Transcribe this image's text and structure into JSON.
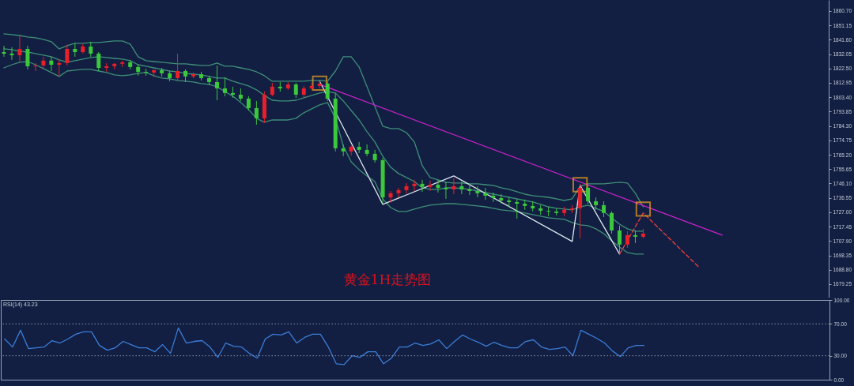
{
  "chart_data": [
    {
      "type": "candlestick",
      "title": "黄金1H走势图",
      "categories": [
        null,
        null,
        null,
        null,
        null,
        null,
        null,
        null,
        null,
        null,
        null,
        null,
        null,
        null,
        null,
        null,
        null,
        null,
        null,
        null,
        null,
        null,
        null,
        null,
        null,
        null,
        null,
        null,
        null,
        null,
        null,
        null,
        null,
        null,
        null,
        null,
        null,
        null,
        null,
        null,
        null,
        null,
        null,
        null,
        null,
        null,
        null,
        null,
        null,
        null,
        null,
        null,
        null,
        null,
        null,
        null,
        null,
        null,
        null,
        null,
        null,
        null,
        null,
        null,
        null,
        null,
        null,
        null,
        null,
        null,
        null,
        null,
        null,
        null,
        null,
        null,
        null,
        null,
        null,
        null,
        null,
        null,
        null,
        null,
        null,
        null,
        null,
        null,
        null,
        null,
        null,
        null,
        null,
        null,
        null,
        null,
        null,
        null,
        null,
        null,
        null,
        null,
        null,
        null,
        null
      ],
      "ohlc": [
        [
          1833.4,
          1837.6,
          1830.3,
          1832.4
        ],
        [
          1832.4,
          1836.6,
          1828.2,
          1831.3
        ],
        [
          1831.3,
          1844.4,
          1827.1,
          1835.5
        ],
        [
          1835.5,
          1837.6,
          1821.9,
          1824.0
        ],
        [
          1824.0,
          1826.1,
          1820.8,
          1824.5
        ],
        [
          1824.5,
          1830.3,
          1821.9,
          1827.7
        ],
        [
          1827.7,
          1830.3,
          1820.8,
          1825.0
        ],
        [
          1825.0,
          1828.7,
          1817.2,
          1826.1
        ],
        [
          1826.1,
          1838.2,
          1824.5,
          1835.5
        ],
        [
          1835.5,
          1839.2,
          1830.3,
          1833.4
        ],
        [
          1833.4,
          1838.7,
          1832.4,
          1837.1
        ],
        [
          1837.1,
          1840.3,
          1830.3,
          1832.4
        ],
        [
          1832.4,
          1833.4,
          1820.8,
          1822.9
        ],
        [
          1822.9,
          1826.1,
          1820.3,
          1824.0
        ],
        [
          1824.0,
          1826.1,
          1821.9,
          1825.6
        ],
        [
          1825.6,
          1827.7,
          1823.5,
          1826.6
        ],
        [
          1826.6,
          1828.2,
          1821.9,
          1823.5
        ],
        [
          1823.5,
          1825.0,
          1817.7,
          1820.3
        ],
        [
          1820.3,
          1822.4,
          1817.7,
          1819.8
        ],
        [
          1819.8,
          1821.9,
          1816.7,
          1821.4
        ],
        [
          1821.4,
          1822.9,
          1817.2,
          1819.3
        ],
        [
          1819.3,
          1820.8,
          1814.0,
          1816.1
        ],
        [
          1816.1,
          1832.4,
          1814.0,
          1820.8
        ],
        [
          1820.8,
          1821.9,
          1813.5,
          1817.2
        ],
        [
          1817.2,
          1819.8,
          1816.1,
          1818.7
        ],
        [
          1818.7,
          1820.3,
          1814.6,
          1816.1
        ],
        [
          1816.1,
          1817.7,
          1811.4,
          1813.5
        ],
        [
          1813.5,
          1824.5,
          1801.4,
          1809.3
        ],
        [
          1809.3,
          1816.7,
          1804.1,
          1806.2
        ],
        [
          1806.2,
          1810.4,
          1803.0,
          1805.1
        ],
        [
          1805.1,
          1809.3,
          1800.9,
          1802.5
        ],
        [
          1802.5,
          1804.1,
          1794.6,
          1796.2
        ],
        [
          1796.2,
          1800.9,
          1785.2,
          1789.4
        ],
        [
          1789.4,
          1807.2,
          1786.2,
          1805.1
        ],
        [
          1805.1,
          1813.0,
          1804.1,
          1810.4
        ],
        [
          1810.4,
          1813.5,
          1807.2,
          1809.3
        ],
        [
          1809.3,
          1813.5,
          1808.3,
          1811.9
        ],
        [
          1811.9,
          1813.0,
          1803.0,
          1805.1
        ],
        [
          1805.1,
          1810.9,
          1803.5,
          1809.3
        ],
        [
          1809.3,
          1813.0,
          1808.3,
          1810.9
        ],
        [
          1810.9,
          1814.0,
          1809.3,
          1812.5
        ],
        [
          1812.5,
          1813.5,
          1800.9,
          1802.5
        ],
        [
          1802.5,
          1806.2,
          1767.4,
          1769.5
        ],
        [
          1769.5,
          1772.1,
          1764.2,
          1767.4
        ],
        [
          1767.4,
          1771.6,
          1764.7,
          1770.5
        ],
        [
          1770.5,
          1773.7,
          1766.3,
          1768.4
        ],
        [
          1768.4,
          1772.1,
          1764.2,
          1765.8
        ],
        [
          1765.8,
          1768.4,
          1760.0,
          1761.6
        ],
        [
          1761.6,
          1763.2,
          1732.7,
          1736.9
        ],
        [
          1736.9,
          1741.1,
          1733.3,
          1739.6
        ],
        [
          1739.6,
          1743.2,
          1736.9,
          1741.7
        ],
        [
          1741.7,
          1746.4,
          1739.6,
          1744.3
        ],
        [
          1744.3,
          1748.5,
          1741.1,
          1745.9
        ],
        [
          1745.9,
          1748.5,
          1740.6,
          1743.8
        ],
        [
          1743.8,
          1748.0,
          1741.1,
          1745.3
        ],
        [
          1745.3,
          1748.5,
          1740.1,
          1743.2
        ],
        [
          1743.2,
          1747.4,
          1735.9,
          1742.2
        ],
        [
          1742.2,
          1749.5,
          1739.0,
          1744.3
        ],
        [
          1744.3,
          1747.4,
          1739.0,
          1742.2
        ],
        [
          1742.2,
          1745.9,
          1738.5,
          1741.1
        ],
        [
          1741.1,
          1744.3,
          1736.9,
          1739.6
        ],
        [
          1739.6,
          1743.2,
          1735.4,
          1738.0
        ],
        [
          1738.0,
          1740.1,
          1733.8,
          1736.4
        ],
        [
          1736.4,
          1739.0,
          1732.7,
          1734.8
        ],
        [
          1734.8,
          1736.9,
          1730.6,
          1733.8
        ],
        [
          1733.8,
          1735.9,
          1722.8,
          1732.7
        ],
        [
          1732.7,
          1735.4,
          1728.6,
          1731.2
        ],
        [
          1731.2,
          1734.3,
          1727.5,
          1729.6
        ],
        [
          1729.6,
          1731.7,
          1725.4,
          1728.0
        ],
        [
          1728.0,
          1730.6,
          1724.4,
          1727.5
        ],
        [
          1727.5,
          1729.6,
          1724.9,
          1726.5
        ],
        [
          1726.5,
          1730.6,
          1724.4,
          1728.6
        ],
        [
          1728.6,
          1731.7,
          1726.5,
          1729.6
        ],
        [
          1729.6,
          1745.9,
          1709.7,
          1743.2
        ],
        [
          1743.2,
          1744.8,
          1732.7,
          1734.3
        ],
        [
          1734.3,
          1736.9,
          1728.6,
          1731.7
        ],
        [
          1731.7,
          1734.3,
          1723.8,
          1726.5
        ],
        [
          1726.5,
          1727.5,
          1712.8,
          1714.9
        ],
        [
          1714.9,
          1718.1,
          1700.2,
          1705.5
        ],
        [
          1705.5,
          1714.4,
          1703.4,
          1711.8
        ],
        [
          1711.8,
          1714.9,
          1706.5,
          1710.7
        ],
        [
          1710.7,
          1716.0,
          1709.7,
          1712.8
        ],
        null,
        null,
        null,
        null,
        null,
        null,
        null,
        null,
        null,
        null,
        null,
        null,
        null,
        null,
        null,
        null,
        null,
        null,
        null,
        null,
        null,
        null,
        null
      ],
      "colors": [
        "#3cc83c",
        "#3cc83c",
        "#e8202a",
        "#3cc83c",
        "#e8202a",
        "#e8202a",
        "#3cc83c",
        "#e8202a",
        "#e8202a",
        "#3cc83c",
        "#e8202a",
        "#3cc83c",
        "#3cc83c",
        "#e8202a",
        "#e8202a",
        "#e8202a",
        "#3cc83c",
        "#3cc83c",
        "#3cc83c",
        "#e8202a",
        "#3cc83c",
        "#3cc83c",
        "#e8202a",
        "#3cc83c",
        "#e8202a",
        "#3cc83c",
        "#3cc83c",
        "#3cc83c",
        "#3cc83c",
        "#3cc83c",
        "#3cc83c",
        "#3cc83c",
        "#3cc83c",
        "#e8202a",
        "#e8202a",
        "#3cc83c",
        "#e8202a",
        "#3cc83c",
        "#e8202a",
        "#e8202a",
        "#e8202a",
        "#3cc83c",
        "#3cc83c",
        "#3cc83c",
        "#e8202a",
        "#3cc83c",
        "#3cc83c",
        "#3cc83c",
        "#3cc83c",
        "#e8202a",
        "#e8202a",
        "#e8202a",
        "#e8202a",
        "#3cc83c",
        "#e8202a",
        "#3cc83c",
        "#3cc83c",
        "#e8202a",
        "#3cc83c",
        "#3cc83c",
        "#3cc83c",
        "#3cc83c",
        "#3cc83c",
        "#3cc83c",
        "#3cc83c",
        "#3cc83c",
        "#3cc83c",
        "#3cc83c",
        "#3cc83c",
        "#3cc83c",
        "#3cc83c",
        "#e8202a",
        "#e8202a",
        "#e8202a",
        "#3cc83c",
        "#3cc83c",
        "#3cc83c",
        "#3cc83c",
        "#3cc83c",
        "#e8202a",
        "#3cc83c",
        "#e8202a",
        null,
        null,
        null,
        null,
        null,
        null,
        null,
        null,
        null,
        null,
        null,
        null,
        null,
        null,
        null,
        null,
        null,
        null,
        null,
        null,
        null,
        null,
        null
      ],
      "series": [
        {
          "type": "line",
          "color": "#3f8f78",
          "values": [
            1845.5,
            1845.0,
            1844.4,
            1843.4,
            1842.9,
            1841.8,
            1840.3,
            1835.5,
            1837.6,
            1839.2,
            1839.2,
            1839.7,
            1839.7,
            1840.3,
            1840.8,
            1840.8,
            1838.7,
            1830.3,
            1827.7,
            1827.1,
            1826.6,
            1826.1,
            1825.6,
            1825.6,
            1825.0,
            1824.5,
            1824.5,
            1826.1,
            1824.0,
            1824.0,
            1822.9,
            1821.9,
            1820.3,
            1817.7,
            1814.0,
            1814.0,
            1814.0,
            1814.0,
            1814.0,
            1814.6,
            1814.6,
            1814.0,
            1820.8,
            1830.3,
            1830.3,
            1823.5,
            1810.4,
            1797.2,
            1784.1,
            1782.6,
            1782.6,
            1779.9,
            1773.7,
            1757.9,
            1750.1,
            1748.5,
            1746.9,
            1746.4,
            1746.4,
            1745.9,
            1745.9,
            1745.3,
            1744.8,
            1743.2,
            1742.2,
            1740.6,
            1739.0,
            1738.0,
            1737.5,
            1736.9,
            1735.9,
            1734.8,
            1735.9,
            1744.3,
            1745.9,
            1745.9,
            1745.9,
            1746.4,
            1746.9,
            1746.4,
            1739.6,
            1730.6,
            null,
            null,
            null,
            null,
            null,
            null,
            null,
            null,
            null,
            null,
            null,
            null,
            null,
            null,
            null,
            null,
            null,
            null,
            null,
            null,
            null,
            null,
            null
          ]
        },
        {
          "type": "line",
          "color": "#3f8f78",
          "values": [
            1835.5,
            1835.0,
            1834.0,
            1833.4,
            1832.4,
            1831.3,
            1830.3,
            1828.2,
            1826.6,
            1827.7,
            1828.7,
            1829.8,
            1830.3,
            1829.8,
            1829.2,
            1828.7,
            1827.7,
            1825.0,
            1824.0,
            1822.9,
            1821.9,
            1820.8,
            1820.3,
            1819.3,
            1818.7,
            1818.2,
            1817.2,
            1816.1,
            1816.1,
            1814.0,
            1812.5,
            1810.9,
            1808.3,
            1804.6,
            1801.4,
            1800.9,
            1800.9,
            1801.4,
            1803.0,
            1804.6,
            1806.2,
            1807.2,
            1806.2,
            1800.9,
            1794.6,
            1788.3,
            1780.5,
            1773.7,
            1764.2,
            1756.9,
            1752.7,
            1750.1,
            1747.4,
            1743.2,
            1742.2,
            1742.2,
            1743.2,
            1743.2,
            1742.7,
            1742.2,
            1741.1,
            1740.1,
            1739.0,
            1738.0,
            1736.9,
            1735.9,
            1734.8,
            1733.8,
            1732.2,
            1730.6,
            1729.6,
            1729.1,
            1728.6,
            1730.6,
            1731.7,
            1729.6,
            1727.5,
            1723.3,
            1719.1,
            1716.0,
            1714.4,
            1714.4,
            null,
            null,
            null,
            null,
            null,
            null,
            null,
            null,
            null,
            null,
            null,
            null,
            null,
            null,
            null,
            null,
            null,
            null,
            null,
            null,
            null,
            null,
            null
          ]
        },
        {
          "type": "line",
          "color": "#3f8f78",
          "values": [
            1822.9,
            1825.0,
            1826.6,
            1827.1,
            1825.0,
            1822.4,
            1819.8,
            1817.2,
            1820.8,
            1821.4,
            1821.9,
            1821.9,
            1820.8,
            1819.8,
            1818.2,
            1817.7,
            1818.2,
            1819.3,
            1819.8,
            1817.7,
            1816.1,
            1815.6,
            1814.6,
            1814.0,
            1813.5,
            1812.5,
            1811.9,
            1810.4,
            1807.2,
            1804.1,
            1799.9,
            1795.2,
            1789.4,
            1786.8,
            1788.3,
            1788.3,
            1788.3,
            1789.4,
            1793.1,
            1795.7,
            1798.3,
            1799.9,
            1789.4,
            1771.0,
            1760.5,
            1755.3,
            1751.1,
            1747.4,
            1735.9,
            1730.1,
            1727.5,
            1727.5,
            1729.1,
            1730.6,
            1731.7,
            1732.2,
            1732.7,
            1732.7,
            1732.2,
            1731.7,
            1731.2,
            1730.6,
            1729.6,
            1728.6,
            1728.0,
            1727.5,
            1726.5,
            1725.4,
            1724.4,
            1723.3,
            1722.8,
            1722.3,
            1720.2,
            1718.6,
            1718.1,
            1716.0,
            1712.8,
            1708.1,
            1703.9,
            1700.2,
            1699.2,
            1699.2,
            null,
            null,
            null,
            null,
            null,
            null,
            null,
            null,
            null,
            null,
            null,
            null,
            null,
            null,
            null,
            null,
            null,
            null,
            null,
            null,
            null,
            null,
            null
          ]
        },
        {
          "type": "line",
          "color": "#cc22cc",
          "values": [
            null,
            null,
            null,
            null,
            null,
            null,
            null,
            null,
            null,
            null,
            null,
            null,
            null,
            null,
            null,
            null,
            null,
            null,
            null,
            null,
            null,
            null,
            null,
            null,
            null,
            null,
            null,
            null,
            null,
            null,
            null,
            null,
            null,
            null,
            null,
            null,
            null,
            null,
            null,
            null,
            1811.9,
            null,
            null,
            null,
            null,
            null,
            null,
            null,
            null,
            null,
            null,
            null,
            null,
            null,
            null,
            null,
            null,
            null,
            null,
            null,
            null,
            null,
            null,
            null,
            null,
            null,
            null,
            null,
            null,
            null,
            null,
            null,
            null,
            null,
            null,
            null,
            null,
            null,
            null,
            null,
            null,
            null,
            null,
            null,
            null,
            null,
            null,
            null,
            null,
            null,
            null,
            1711.8,
            null,
            null,
            null,
            null,
            null,
            null,
            null,
            null,
            null,
            null,
            null,
            null,
            null
          ]
        },
        {
          "type": "line",
          "color": "#dce6ee",
          "values": [
            null,
            null,
            null,
            null,
            null,
            null,
            null,
            null,
            null,
            null,
            null,
            null,
            null,
            null,
            null,
            null,
            null,
            null,
            null,
            null,
            null,
            null,
            null,
            null,
            null,
            null,
            null,
            null,
            null,
            null,
            null,
            null,
            null,
            null,
            null,
            null,
            null,
            null,
            null,
            null,
            1814.0,
            null,
            null,
            null,
            null,
            null,
            null,
            null,
            1732.2,
            null,
            null,
            null,
            null,
            null,
            null,
            null,
            null,
            1751.1,
            null,
            null,
            null,
            null,
            null,
            null,
            null,
            null,
            null,
            null,
            null,
            null,
            null,
            null,
            1707.6,
            1744.8,
            null,
            null,
            null,
            null,
            1699.2,
            null,
            null,
            null,
            null,
            null,
            null,
            null,
            null,
            null,
            null,
            null,
            null,
            null,
            null,
            null,
            null,
            null,
            null,
            null,
            null,
            null,
            null,
            null,
            null,
            null,
            null
          ]
        },
        {
          "type": "line",
          "color": "#f04040",
          "line_style": "dashed",
          "values": [
            null,
            null,
            null,
            null,
            null,
            null,
            null,
            null,
            null,
            null,
            null,
            null,
            null,
            null,
            null,
            null,
            null,
            null,
            null,
            null,
            null,
            null,
            null,
            null,
            null,
            null,
            null,
            null,
            null,
            null,
            null,
            null,
            null,
            null,
            null,
            null,
            null,
            null,
            null,
            null,
            null,
            null,
            null,
            null,
            null,
            null,
            null,
            null,
            null,
            null,
            null,
            null,
            null,
            null,
            null,
            null,
            null,
            null,
            null,
            null,
            null,
            null,
            null,
            null,
            null,
            null,
            null,
            null,
            null,
            null,
            null,
            null,
            null,
            null,
            null,
            null,
            null,
            null,
            1699.2,
            null,
            null,
            1726.5,
            null,
            null,
            null,
            null,
            null,
            null,
            1690.8,
            null,
            null,
            null,
            null,
            null,
            null,
            null,
            null,
            null,
            null,
            null,
            null,
            null,
            null,
            null,
            null
          ]
        },
        {
          "type": "scatter",
          "color": "#f0a020",
          "marker": "square",
          "values": [
            null,
            null,
            null,
            null,
            null,
            null,
            null,
            null,
            null,
            null,
            null,
            null,
            null,
            null,
            null,
            null,
            null,
            null,
            null,
            null,
            null,
            null,
            null,
            null,
            null,
            null,
            null,
            null,
            null,
            null,
            null,
            null,
            null,
            null,
            null,
            null,
            null,
            null,
            null,
            null,
            1812.7,
            null,
            null,
            null,
            null,
            null,
            null,
            null,
            null,
            null,
            null,
            null,
            null,
            null,
            null,
            null,
            null,
            null,
            null,
            null,
            null,
            null,
            null,
            null,
            null,
            null,
            null,
            null,
            null,
            null,
            null,
            null,
            null,
            1745.3,
            null,
            null,
            null,
            null,
            null,
            null,
            null,
            1729.1,
            null,
            null,
            null,
            null,
            null,
            null,
            null,
            null,
            null,
            null,
            null,
            null,
            null,
            null,
            null,
            null,
            null,
            null,
            null,
            null,
            null,
            null,
            null
          ]
        }
      ],
      "ylim": [
        1670.3,
        1868.0
      ],
      "yticks": [
        {
          "value": 1860.7,
          "label": "1860.70"
        },
        {
          "value": 1851.15,
          "label": "1851.15"
        },
        {
          "value": 1841.6,
          "label": "1841.60"
        },
        {
          "value": 1832.05,
          "label": "1832.05"
        },
        {
          "value": 1822.5,
          "label": "1822.50"
        },
        {
          "value": 1812.95,
          "label": "1812.95"
        },
        {
          "value": 1803.4,
          "label": "1803.40"
        },
        {
          "value": 1793.85,
          "label": "1793.85"
        },
        {
          "value": 1784.3,
          "label": "1784.30"
        },
        {
          "value": 1774.75,
          "label": "1774.75"
        },
        {
          "value": 1765.2,
          "label": "1765.20"
        },
        {
          "value": 1755.65,
          "label": "1755.65"
        },
        {
          "value": 1746.1,
          "label": "1746.10"
        },
        {
          "value": 1736.55,
          "label": "1736.55"
        },
        {
          "value": 1727,
          "label": "1727.00"
        },
        {
          "value": 1717.45,
          "label": "1717.45"
        },
        {
          "value": 1707.9,
          "label": "1707.90"
        },
        {
          "value": 1698.35,
          "label": "1698.35"
        },
        {
          "value": 1688.8,
          "label": "1688.80"
        },
        {
          "value": 1679.25,
          "label": "1679.25"
        }
      ],
      "tick_labels": "y"
    },
    {
      "type": "line",
      "title": "RSI(14) 43.23",
      "categories": [
        null,
        null,
        null,
        null,
        null,
        null,
        null,
        null,
        null,
        null,
        null,
        null,
        null,
        null,
        null,
        null,
        null,
        null,
        null,
        null,
        null,
        null,
        null,
        null,
        null,
        null,
        null,
        null,
        null,
        null,
        null,
        null,
        null,
        null,
        null,
        null,
        null,
        null,
        null,
        null,
        null,
        null,
        null,
        null,
        null,
        null,
        null,
        null,
        null,
        null,
        null,
        null,
        null,
        null,
        null,
        null,
        null,
        null,
        null,
        null,
        null,
        null,
        null,
        null,
        null,
        null,
        null,
        null,
        null,
        null,
        null,
        null,
        null,
        null,
        null,
        null,
        null,
        null,
        null,
        null,
        null,
        null,
        null,
        null,
        null,
        null,
        null,
        null,
        null,
        null,
        null,
        null,
        null,
        null,
        null,
        null,
        null,
        null,
        null,
        null,
        null,
        null,
        null,
        null,
        null
      ],
      "series": [
        {
          "color": "#3b7dd8",
          "values": [
            51,
            41,
            62,
            39,
            40,
            41,
            49,
            46,
            51,
            57,
            60,
            60,
            43,
            37,
            40,
            48,
            44,
            40,
            40,
            35,
            44,
            33,
            65,
            46,
            48,
            49,
            41,
            28,
            46,
            42,
            41,
            33,
            27,
            51,
            57,
            56,
            60,
            46,
            53,
            57,
            57,
            41,
            20,
            19,
            30,
            28,
            35,
            35,
            20,
            27,
            41,
            41,
            46,
            43,
            45,
            50,
            39,
            48,
            56,
            51,
            47,
            42,
            47,
            43,
            40,
            40,
            48,
            50,
            41,
            38,
            39,
            41,
            30,
            62,
            57,
            52,
            46,
            36,
            29,
            40,
            43,
            43,
            null,
            null,
            null,
            null,
            null,
            null,
            null,
            null,
            null,
            null,
            null,
            null,
            null,
            null,
            null,
            null,
            null,
            null,
            null,
            null,
            null,
            null,
            null
          ]
        }
      ],
      "ylim": [
        0,
        100
      ],
      "yticks": [
        {
          "value": 100,
          "label": "100.00"
        },
        {
          "value": 70,
          "label": "70.00"
        },
        {
          "value": 30,
          "label": "30.00"
        },
        {
          "value": 0,
          "label": "0.00"
        }
      ],
      "ref_lines": [
        {
          "axis": "y",
          "value": 70,
          "color": "#8a93a8",
          "line_style": "dotted"
        },
        {
          "axis": "y",
          "value": 30,
          "color": "#8a93a8",
          "line_style": "dotted"
        }
      ],
      "tick_labels": "y"
    }
  ]
}
